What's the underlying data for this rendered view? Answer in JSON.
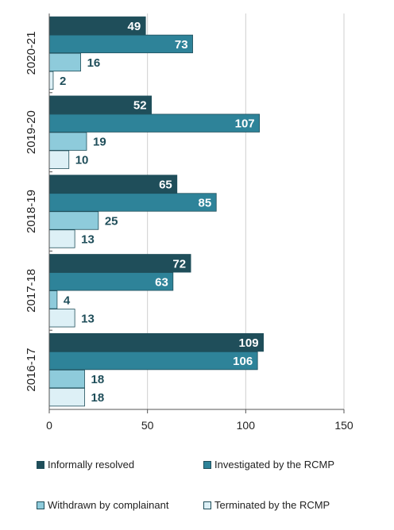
{
  "chart_data": {
    "type": "bar",
    "orientation": "horizontal",
    "categories": [
      "2020-21",
      "2019-20",
      "2018-19",
      "2017-18",
      "2016-17"
    ],
    "series": [
      {
        "name": "Informally resolved",
        "color": "#1f4e5a",
        "values": [
          49,
          52,
          65,
          72,
          109
        ]
      },
      {
        "name": "Investigated by the RCMP",
        "color": "#2e8399",
        "values": [
          73,
          107,
          85,
          63,
          106
        ]
      },
      {
        "name": "Withdrawn by complainant",
        "color": "#8ecbdb",
        "values": [
          16,
          19,
          25,
          4,
          18
        ]
      },
      {
        "name": "Terminated by the RCMP",
        "color": "#ddf0f6",
        "values": [
          2,
          10,
          13,
          13,
          18
        ]
      }
    ],
    "xlim": [
      0,
      150
    ],
    "xticks": [
      0,
      50,
      100,
      150
    ],
    "grid": true,
    "legend_position": "bottom"
  }
}
